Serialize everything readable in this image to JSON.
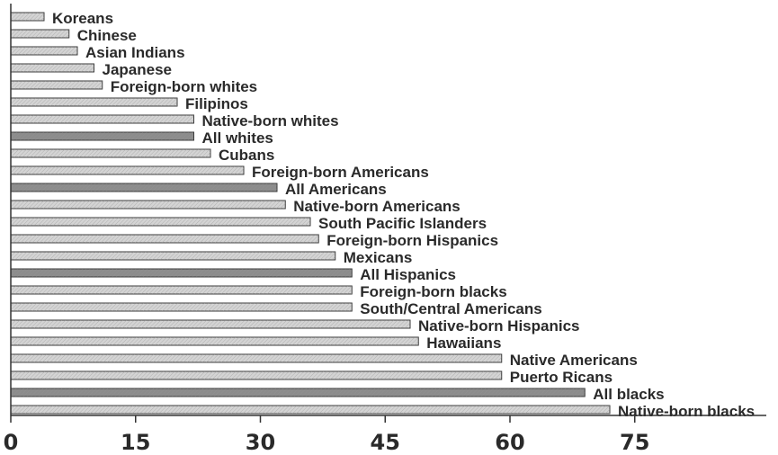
{
  "chart_data": {
    "type": "bar",
    "orientation": "horizontal",
    "categories": [
      "Koreans",
      "Chinese",
      "Asian Indians",
      "Japanese",
      "Foreign-born whites",
      "Filipinos",
      "Native-born whites",
      "All whites",
      "Cubans",
      "Foreign-born Americans",
      "All Americans",
      "Native-born Americans",
      "South Pacific Islanders",
      "Foreign-born Hispanics",
      "Mexicans",
      "All Hispanics",
      "Foreign-born blacks",
      "South/Central Americans",
      "Native-born Hispanics",
      "Hawaiians",
      "Native Americans",
      "Puerto Ricans",
      "All blacks",
      "Native-born blacks"
    ],
    "values": [
      4,
      7,
      8,
      10,
      11,
      20,
      22,
      22,
      24,
      28,
      32,
      33,
      36,
      37,
      39,
      41,
      41,
      41,
      48,
      49,
      59,
      59,
      69,
      72
    ],
    "highlight": [
      false,
      false,
      false,
      false,
      false,
      false,
      false,
      true,
      false,
      false,
      true,
      false,
      false,
      false,
      false,
      true,
      false,
      false,
      false,
      false,
      false,
      false,
      true,
      false
    ],
    "x_ticks": [
      "0",
      "15",
      "30",
      "45",
      "60",
      "75"
    ],
    "xlim": [
      0,
      90
    ],
    "title": "",
    "xlabel": "",
    "ylabel": "",
    "grid": false,
    "colors": {
      "bar_fill": "#d4d4d4",
      "bar_highlight": "#8c8c8c",
      "bar_stroke": "#3a3a3a",
      "axis": "#333333",
      "text": "#2a2a2a"
    }
  }
}
